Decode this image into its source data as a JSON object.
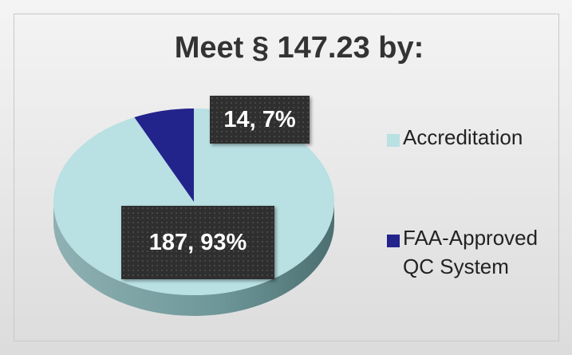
{
  "chart_data": {
    "type": "pie",
    "title": "Meet § 147.23 by:",
    "categories": [
      "Accreditation",
      "FAA-Approved QC System"
    ],
    "values": [
      187,
      14
    ],
    "value_labels": [
      "187, 93%",
      "14, 7%"
    ],
    "colors": [
      "#b9e0e3",
      "#23238c"
    ],
    "legend": "right"
  }
}
